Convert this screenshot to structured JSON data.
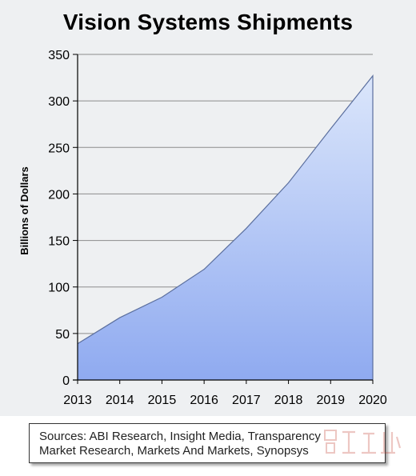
{
  "chart_data": {
    "type": "area",
    "title": "Vision Systems Shipments",
    "xlabel": "",
    "ylabel": "Billions of Dollars",
    "x": [
      "2013",
      "2014",
      "2015",
      "2016",
      "2017",
      "2018",
      "2019",
      "2020"
    ],
    "series": [
      {
        "values": [
          39,
          67,
          89,
          119,
          163,
          212,
          270,
          327
        ]
      }
    ],
    "ylim": [
      0,
      350
    ],
    "yticks": [
      0,
      50,
      100,
      150,
      200,
      250,
      300,
      350
    ],
    "grid": true,
    "legend": "none",
    "colors": {
      "fill_top": "#dbe6fb",
      "fill_bottom": "#8faaf0",
      "line": "#5b6f9e",
      "grid": "#8c8c8c",
      "background": "#eef0f2"
    }
  },
  "source": {
    "lines": [
      "Sources: ABI Research, Insight Media, Transparency",
      "Market Research, Markets And Markets, Synopsys"
    ]
  },
  "watermark": {
    "icon": "watermark-logo-icon"
  }
}
